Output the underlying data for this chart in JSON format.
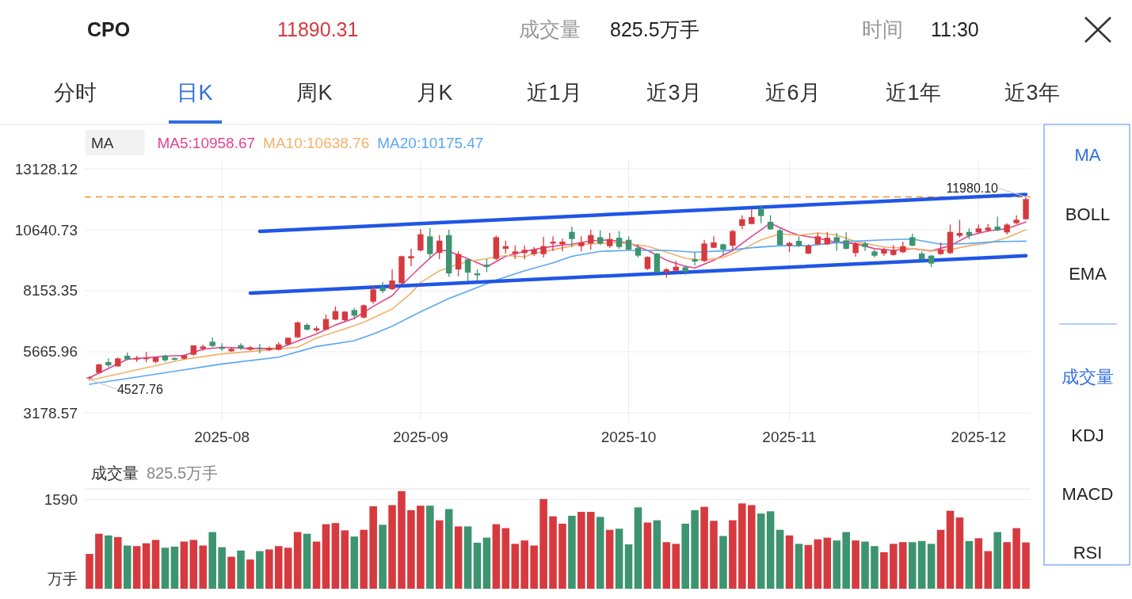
{
  "chart_data": [
    {
      "type": "candlestick",
      "title": "CPO",
      "categories": [
        null,
        null,
        null,
        null,
        null,
        null,
        null,
        null,
        null,
        null,
        null,
        null,
        null,
        null,
        "2025-08",
        null,
        null,
        null,
        null,
        null,
        null,
        null,
        null,
        null,
        null,
        null,
        null,
        null,
        null,
        null,
        null,
        null,
        null,
        null,
        null,
        "2025-09",
        null,
        null,
        null,
        null,
        null,
        null,
        null,
        null,
        null,
        null,
        null,
        null,
        null,
        null,
        null,
        null,
        null,
        null,
        null,
        null,
        null,
        "2025-10",
        null,
        null,
        null,
        null,
        null,
        null,
        null,
        null,
        null,
        null,
        null,
        null,
        null,
        null,
        null,
        null,
        "2025-11",
        null,
        null,
        null,
        null,
        null,
        null,
        null,
        null,
        null,
        null,
        null,
        null,
        null,
        null,
        null,
        null,
        null,
        null,
        null,
        "2025-12",
        null,
        null,
        null,
        null,
        null
      ],
      "ohlc": [
        [
          4578,
          4675,
          4527.76,
          4621
        ],
        [
          4804,
          5181,
          4782,
          5149
        ],
        [
          5246,
          5396,
          5041,
          5116
        ],
        [
          5073,
          5429,
          5063,
          5396
        ],
        [
          5504,
          5633,
          5332,
          5353
        ],
        [
          5353,
          5493,
          5256,
          5418
        ],
        [
          5364,
          5665,
          5235,
          5407
        ],
        [
          5256,
          5461,
          5203,
          5439
        ],
        [
          5515,
          5547,
          5256,
          5321
        ],
        [
          5407,
          5450,
          5310,
          5342
        ],
        [
          5386,
          5547,
          5342,
          5526
        ],
        [
          5547,
          5935,
          5515,
          5924
        ],
        [
          5795,
          5956,
          5709,
          5881
        ],
        [
          6075,
          6247,
          5859,
          5902
        ],
        [
          5849,
          6010,
          5709,
          5784
        ],
        [
          5687,
          5838,
          5665,
          5784
        ],
        [
          5935,
          6010,
          5741,
          5816
        ],
        [
          5752,
          5902,
          5709,
          5849
        ],
        [
          5838,
          5988,
          5601,
          5795
        ],
        [
          5741,
          5881,
          5698,
          5816
        ],
        [
          5752,
          6053,
          5719,
          5967
        ],
        [
          5967,
          6258,
          5924,
          6236
        ],
        [
          6258,
          6904,
          6225,
          6861
        ],
        [
          6764,
          6828,
          6538,
          6570
        ],
        [
          6538,
          6710,
          6473,
          6624
        ],
        [
          6570,
          7183,
          6548,
          7001
        ],
        [
          6979,
          7518,
          6958,
          7324
        ],
        [
          6958,
          7324,
          6893,
          7302
        ],
        [
          7367,
          7453,
          6979,
          7141
        ],
        [
          7065,
          7593,
          7022,
          7561
        ],
        [
          7711,
          8357,
          7625,
          8207
        ],
        [
          8293,
          8508,
          8056,
          8142
        ],
        [
          8217,
          9025,
          8185,
          8573
        ],
        [
          8465,
          9585,
          8422,
          9563
        ],
        [
          9477,
          9865,
          9154,
          9563
        ],
        [
          9800,
          10672,
          9757,
          10457
        ],
        [
          10371,
          10705,
          9456,
          9649
        ],
        [
          9703,
          10424,
          9434,
          10198
        ],
        [
          10424,
          10640,
          8723,
          8863
        ],
        [
          9025,
          9757,
          8745,
          9649
        ],
        [
          9434,
          9434,
          8540,
          8895
        ],
        [
          8863,
          9025,
          8573,
          8788
        ],
        [
          9219,
          9456,
          8917,
          9133
        ],
        [
          9456,
          10403,
          9402,
          10338
        ],
        [
          9865,
          10188,
          9671,
          9972
        ],
        [
          9671,
          9994,
          9456,
          9757
        ],
        [
          9692,
          9994,
          9434,
          9822
        ],
        [
          9649,
          9940,
          9563,
          9832
        ],
        [
          9649,
          10349,
          9509,
          9972
        ],
        [
          10080,
          10371,
          9778,
          10155
        ],
        [
          10048,
          10284,
          9757,
          10155
        ],
        [
          10554,
          10769,
          9940,
          10263
        ],
        [
          9972,
          10371,
          9757,
          10123
        ],
        [
          10080,
          10640,
          9832,
          10424
        ],
        [
          10338,
          10618,
          10015,
          10080
        ],
        [
          9972,
          10510,
          9908,
          10263
        ],
        [
          10317,
          10586,
          9865,
          9940
        ],
        [
          10231,
          10371,
          9800,
          9832
        ],
        [
          9908,
          10048,
          9509,
          9585
        ],
        [
          9046,
          9563,
          9003,
          9531
        ],
        [
          9671,
          9692,
          8896,
          8896
        ],
        [
          8917,
          9079,
          8680,
          9025
        ],
        [
          8971,
          9370,
          8917,
          9133
        ],
        [
          9111,
          9186,
          8809,
          8939
        ],
        [
          9434,
          9725,
          9186,
          9348
        ],
        [
          9369,
          10231,
          9326,
          10080
        ],
        [
          9908,
          10371,
          9886,
          10123
        ],
        [
          10048,
          10080,
          9617,
          9832
        ],
        [
          9994,
          10640,
          9757,
          10586
        ],
        [
          10801,
          11232,
          10661,
          11070
        ],
        [
          10877,
          11501,
          10855,
          11157
        ],
        [
          11480,
          11609,
          10909,
          11200
        ],
        [
          10963,
          11232,
          10640,
          10661
        ],
        [
          10618,
          10694,
          10015,
          10015
        ],
        [
          9994,
          10155,
          9725,
          10101
        ],
        [
          10188,
          10371,
          9940,
          9994
        ],
        [
          9671,
          10048,
          9649,
          9994
        ],
        [
          10048,
          10511,
          10015,
          10371
        ],
        [
          10048,
          10554,
          10015,
          10317
        ],
        [
          10338,
          10511,
          9779,
          10155
        ],
        [
          10209,
          10532,
          9832,
          9865
        ],
        [
          9692,
          10123,
          9542,
          10080
        ],
        [
          10080,
          10155,
          9779,
          9940
        ],
        [
          9757,
          9832,
          9509,
          9585
        ],
        [
          9671,
          9908,
          9585,
          9832
        ],
        [
          9617,
          10015,
          9585,
          9800
        ],
        [
          9725,
          10155,
          9692,
          9972
        ],
        [
          10338,
          10478,
          9972,
          9994
        ],
        [
          9671,
          9757,
          9402,
          9434
        ],
        [
          9585,
          9617,
          9111,
          9262
        ],
        [
          9649,
          10123,
          9617,
          9832
        ],
        [
          9692,
          10855,
          9649,
          10554
        ],
        [
          10392,
          11049,
          10317,
          10510
        ],
        [
          10554,
          10694,
          10263,
          10403
        ],
        [
          10532,
          10855,
          10511,
          10694
        ],
        [
          10618,
          10877,
          10554,
          10726
        ],
        [
          10769,
          11178,
          10586,
          10618
        ],
        [
          10532,
          10909,
          10446,
          10855
        ],
        [
          10909,
          11232,
          10877,
          11049
        ],
        [
          11071,
          11980.1,
          11049,
          11890.31
        ]
      ],
      "legend_title": "MA",
      "legend": "top left",
      "grid": true,
      "series": [
        {
          "name": "MA5:10958.67",
          "type": "line",
          "color": "#e0448f",
          "values": [
            4610,
            null,
            4990,
            null,
            5360,
            null,
            5420,
            null,
            5490,
            null,
            5520,
            null,
            5770,
            null,
            5850,
            null,
            null,
            5800,
            null,
            null,
            5800,
            null,
            6100,
            null,
            6390,
            null,
            6760,
            null,
            7030,
            null,
            7520,
            null,
            7950,
            8380,
            null,
            9130,
            null,
            9830,
            9760,
            null,
            9460,
            null,
            9130,
            null,
            9560,
            null,
            9760,
            null,
            9910,
            null,
            10020,
            10050,
            null,
            10190,
            null,
            10230,
            null,
            10100,
            null,
            9800,
            null,
            9400,
            null,
            9150,
            9080,
            null,
            9400,
            null,
            9800,
            null,
            10370,
            null,
            10910,
            null,
            10550,
            10420,
            null,
            10300,
            null,
            10120,
            null,
            10080,
            null,
            9870,
            null,
            9800,
            null,
            9870,
            null,
            9780,
            null,
            9990,
            null,
            10400,
            null,
            10590,
            null,
            10690,
            null,
            10958.67
          ]
        },
        {
          "name": "MA10:10638.76",
          "type": "line",
          "color": "#f2b16a",
          "values": [
            4500,
            null,
            null,
            null,
            null,
            4930,
            null,
            null,
            null,
            null,
            5360,
            null,
            null,
            null,
            5580,
            null,
            null,
            null,
            5710,
            null,
            null,
            null,
            5850,
            null,
            6230,
            null,
            null,
            6600,
            null,
            6870,
            null,
            null,
            7410,
            null,
            8060,
            8490,
            null,
            8970,
            null,
            9240,
            9350,
            null,
            9460,
            null,
            9590,
            null,
            9540,
            9670,
            null,
            9830,
            null,
            null,
            10050,
            null,
            null,
            null,
            10120,
            null,
            null,
            9970,
            null,
            9730,
            null,
            9480,
            null,
            9400,
            null,
            9510,
            null,
            9830,
            null,
            10230,
            null,
            10480,
            null,
            10420,
            null,
            10510,
            null,
            10420,
            null,
            10160,
            null,
            null,
            9940,
            null,
            null,
            9870,
            null,
            9780,
            null,
            9830,
            null,
            9990,
            null,
            10100,
            null,
            10320,
            null,
            10638.76
          ]
        },
        {
          "name": "MA20:10175.47",
          "type": "line",
          "color": "#5aa7f5",
          "values": [
            4340,
            null,
            null,
            null,
            null,
            null,
            null,
            null,
            null,
            null,
            4930,
            null,
            null,
            null,
            5170,
            null,
            null,
            null,
            null,
            null,
            5450,
            null,
            null,
            null,
            5880,
            null,
            null,
            null,
            6120,
            null,
            6390,
            null,
            6710,
            null,
            null,
            7300,
            null,
            null,
            7840,
            null,
            8140,
            null,
            null,
            8590,
            null,
            null,
            8970,
            null,
            null,
            9290,
            null,
            9560,
            null,
            null,
            9760,
            null,
            null,
            9800,
            null,
            null,
            null,
            9800,
            null,
            null,
            9730,
            null,
            null,
            9780,
            null,
            null,
            9910,
            null,
            null,
            9990,
            null,
            null,
            9990,
            null,
            null,
            null,
            10160,
            null,
            null,
            null,
            10230,
            null,
            null,
            10260,
            null,
            null,
            10050,
            null,
            null,
            10080,
            null,
            null,
            10160,
            null,
            null,
            10175.47
          ]
        },
        {
          "type": "line",
          "color": "#1f56e6",
          "values": [
            null,
            null,
            null,
            null,
            null,
            null,
            null,
            null,
            null,
            null,
            null,
            null,
            null,
            null,
            null,
            null,
            null,
            null,
            10580,
            null,
            null,
            null,
            null,
            null,
            null,
            null,
            null,
            null,
            null,
            null,
            null,
            null,
            null,
            null,
            null,
            null,
            null,
            null,
            null,
            null,
            null,
            null,
            null,
            null,
            null,
            null,
            null,
            null,
            null,
            null,
            null,
            null,
            null,
            null,
            null,
            null,
            null,
            null,
            null,
            null,
            null,
            null,
            null,
            null,
            null,
            null,
            null,
            null,
            null,
            null,
            null,
            null,
            null,
            null,
            null,
            null,
            null,
            null,
            null,
            null,
            null,
            null,
            null,
            null,
            null,
            null,
            null,
            null,
            null,
            null,
            null,
            null,
            null,
            null,
            null,
            null,
            null,
            null,
            null,
            12080
          ]
        },
        {
          "type": "line",
          "color": "#1f56e6",
          "values": [
            null,
            null,
            null,
            null,
            null,
            null,
            null,
            null,
            null,
            null,
            null,
            null,
            null,
            null,
            null,
            null,
            null,
            8060,
            null,
            null,
            null,
            null,
            null,
            null,
            null,
            null,
            null,
            null,
            null,
            null,
            null,
            null,
            null,
            null,
            null,
            null,
            null,
            null,
            null,
            null,
            null,
            null,
            null,
            null,
            null,
            null,
            null,
            null,
            null,
            null,
            null,
            null,
            null,
            null,
            null,
            null,
            null,
            null,
            null,
            null,
            null,
            null,
            null,
            null,
            null,
            null,
            null,
            null,
            null,
            null,
            null,
            null,
            null,
            null,
            null,
            null,
            null,
            null,
            null,
            null,
            null,
            null,
            null,
            null,
            null,
            null,
            null,
            null,
            null,
            null,
            null,
            null,
            null,
            null,
            null,
            null,
            null,
            null,
            null,
            9580
          ]
        }
      ],
      "ylim": [
        3178.57,
        13128.12
      ],
      "yticks": [
        3178.57,
        5665.96,
        8153.35,
        10640.73,
        13128.12
      ],
      "ref_lines": [
        {
          "axis": "y",
          "value": 11980.1,
          "color": "#f0902a",
          "line_style": "dashed"
        }
      ],
      "annotations": [
        "11890.31",
        "成交量",
        "825.5万手",
        "时间",
        "11:30",
        "分时",
        "日K",
        "周K",
        "月K",
        "近1月",
        "近3月",
        "近6月",
        "近1年",
        "近3年",
        "MA",
        "BOLL",
        "EMA",
        "成交量",
        "KDJ",
        "MACD",
        "RSI",
        {
          "text": "11980.10",
          "y": 11980.1
        },
        {
          "text": "4527.76",
          "y": 4527.76
        }
      ]
    },
    {
      "type": "bar",
      "title": "成交量",
      "subtitle": "825.5万手",
      "ylabel": "万手",
      "grid": "y",
      "tick_labels": "y",
      "categories": [
        null,
        null,
        null,
        null,
        null,
        null,
        null,
        null,
        null,
        null,
        null,
        null,
        null,
        null,
        null,
        null,
        null,
        null,
        null,
        null,
        null,
        null,
        null,
        null,
        null,
        null,
        null,
        null,
        null,
        null,
        null,
        null,
        null,
        null,
        null,
        null,
        null,
        null,
        null,
        null,
        null,
        null,
        null,
        null,
        null,
        null,
        null,
        null,
        null,
        null,
        null,
        null,
        null,
        null,
        null,
        null,
        null,
        null,
        null,
        null,
        null,
        null,
        null,
        null,
        null,
        null,
        null,
        null,
        null,
        null,
        null,
        null,
        null,
        null,
        null,
        null,
        null,
        null,
        null,
        null,
        null,
        null,
        null,
        null,
        null,
        null,
        null,
        null,
        null,
        null,
        null,
        null,
        null,
        null,
        null,
        null,
        null,
        null,
        null,
        null
      ],
      "values": [
        620,
        980,
        950,
        920,
        770,
        760,
        810,
        870,
        730,
        750,
        840,
        870,
        770,
        1010,
        740,
        570,
        680,
        520,
        670,
        700,
        760,
        730,
        1010,
        980,
        840,
        1150,
        1170,
        1040,
        930,
        1050,
        1470,
        1140,
        1490,
        1740,
        1400,
        1480,
        1480,
        1220,
        1420,
        1110,
        1110,
        820,
        910,
        1150,
        1080,
        800,
        860,
        770,
        1600,
        1290,
        1160,
        1300,
        1370,
        1370,
        1280,
        1050,
        1070,
        790,
        1450,
        1180,
        1220,
        830,
        800,
        1160,
        1400,
        1460,
        1210,
        940,
        1220,
        1520,
        1490,
        1340,
        1380,
        1050,
        950,
        800,
        780,
        880,
        910,
        860,
        1010,
        860,
        840,
        760,
        650,
        800,
        830,
        830,
        850,
        800,
        1050,
        1390,
        1270,
        850,
        900,
        670,
        1010,
        830,
        1080,
        825.5
      ],
      "colors": [
        "#d63a3f",
        "#d63a3f",
        "#3d9470",
        "#d63a3f",
        "#3d9470",
        "#d63a3f",
        "#d63a3f",
        "#d63a3f",
        "#3d9470",
        "#3d9470",
        "#d63a3f",
        "#d63a3f",
        "#d63a3f",
        "#3d9470",
        "#3d9470",
        "#d63a3f",
        "#3d9470",
        "#d63a3f",
        "#3d9470",
        "#d63a3f",
        "#d63a3f",
        "#d63a3f",
        "#d63a3f",
        "#3d9470",
        "#d63a3f",
        "#d63a3f",
        "#d63a3f",
        "#d63a3f",
        "#3d9470",
        "#d63a3f",
        "#d63a3f",
        "#3d9470",
        "#d63a3f",
        "#d63a3f",
        "#d63a3f",
        "#d63a3f",
        "#3d9470",
        "#d63a3f",
        "#3d9470",
        "#d63a3f",
        "#3d9470",
        "#3d9470",
        "#3d9470",
        "#d63a3f",
        "#d63a3f",
        "#d63a3f",
        "#d63a3f",
        "#d63a3f",
        "#d63a3f",
        "#d63a3f",
        "#d63a3f",
        "#3d9470",
        "#d63a3f",
        "#d63a3f",
        "#3d9470",
        "#d63a3f",
        "#3d9470",
        "#3d9470",
        "#3d9470",
        "#d63a3f",
        "#3d9470",
        "#d63a3f",
        "#d63a3f",
        "#3d9470",
        "#3d9470",
        "#d63a3f",
        "#d63a3f",
        "#3d9470",
        "#d63a3f",
        "#d63a3f",
        "#d63a3f",
        "#3d9470",
        "#3d9470",
        "#3d9470",
        "#d63a3f",
        "#3d9470",
        "#d63a3f",
        "#d63a3f",
        "#d63a3f",
        "#3d9470",
        "#3d9470",
        "#d63a3f",
        "#3d9470",
        "#3d9470",
        "#d63a3f",
        "#d63a3f",
        "#d63a3f",
        "#3d9470",
        "#3d9470",
        "#3d9470",
        "#d63a3f",
        "#d63a3f",
        "#d63a3f",
        "#3d9470",
        "#d63a3f",
        "#d63a3f",
        "#3d9470",
        "#d63a3f",
        "#d63a3f",
        "#d63a3f"
      ],
      "ylim": [
        0,
        1780
      ],
      "yticks": [
        {
          "value": 0,
          "label": null
        },
        1590
      ]
    }
  ]
}
